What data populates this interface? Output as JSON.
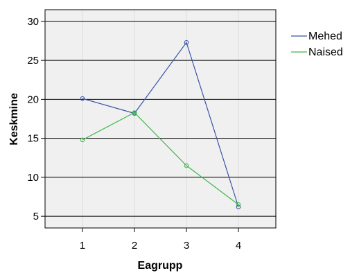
{
  "chart_data": {
    "type": "line",
    "title": "",
    "xlabel": "Eagrupp",
    "ylabel": "Keskmine",
    "categories": [
      "1",
      "2",
      "3",
      "4"
    ],
    "y_ticks": [
      "5",
      "10",
      "15",
      "20",
      "25",
      "30"
    ],
    "ylim": [
      3.5,
      31.5
    ],
    "grid": "horizontal",
    "legend": "right-top",
    "series": [
      {
        "name": "Mehed",
        "color": "#3a53a4",
        "values": [
          20.1,
          18.2,
          27.3,
          6.2
        ]
      },
      {
        "name": "Naised",
        "color": "#3cb84a",
        "values": [
          14.8,
          18.3,
          11.5,
          6.5
        ]
      }
    ]
  }
}
